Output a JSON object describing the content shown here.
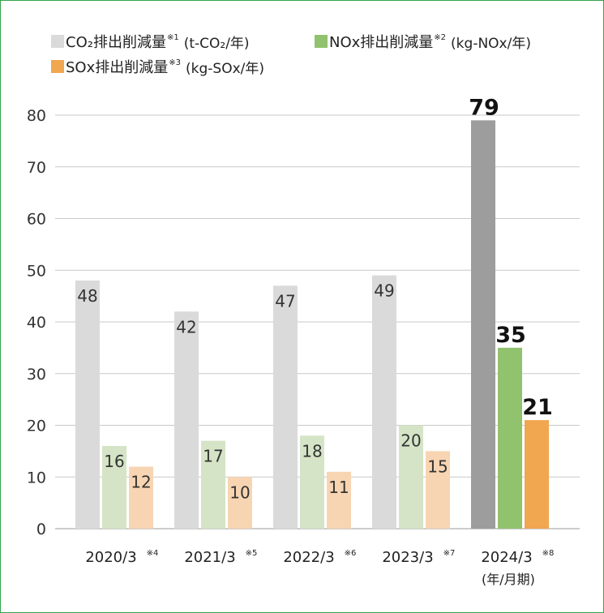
{
  "chart_data": {
    "type": "bar",
    "legend": [
      {
        "label": "CO₂排出削減量",
        "note": "※1",
        "unit": "(t-CO₂/年)",
        "color": "#dadada"
      },
      {
        "label": "NOx排出削減量",
        "note": "※2",
        "unit": "(kg-NOx/年)",
        "color": "#91c26e"
      },
      {
        "label": "SOx排出削減量",
        "note": "※3",
        "unit": "(kg-SOx/年)",
        "color": "#f1a650"
      }
    ],
    "categories": [
      {
        "label": "2020/3",
        "note": "※4",
        "sub": ""
      },
      {
        "label": "2021/3",
        "note": "※5",
        "sub": ""
      },
      {
        "label": "2022/3",
        "note": "※6",
        "sub": ""
      },
      {
        "label": "2023/3",
        "note": "※7",
        "sub": ""
      },
      {
        "label": "2024/3",
        "note": "※8",
        "sub": "(年/月期)"
      }
    ],
    "series": [
      {
        "name": "CO₂排出削減量",
        "values": [
          48,
          42,
          47,
          49,
          79
        ]
      },
      {
        "name": "NOx排出削減量",
        "values": [
          16,
          17,
          18,
          20,
          35
        ]
      },
      {
        "name": "SOx排出削減量",
        "values": [
          12,
          10,
          11,
          15,
          21
        ]
      }
    ],
    "colors_light": [
      "#dadada",
      "#d5e4c6",
      "#f8d5b2"
    ],
    "colors_highlight": [
      "#9c9d9c",
      "#91c26e",
      "#f1a650"
    ],
    "highlight_index": 4,
    "ylim": [
      0,
      80
    ],
    "yticks": [
      0,
      10,
      20,
      30,
      40,
      50,
      60,
      70,
      80
    ],
    "grid": true,
    "legend_position": "top-left"
  }
}
